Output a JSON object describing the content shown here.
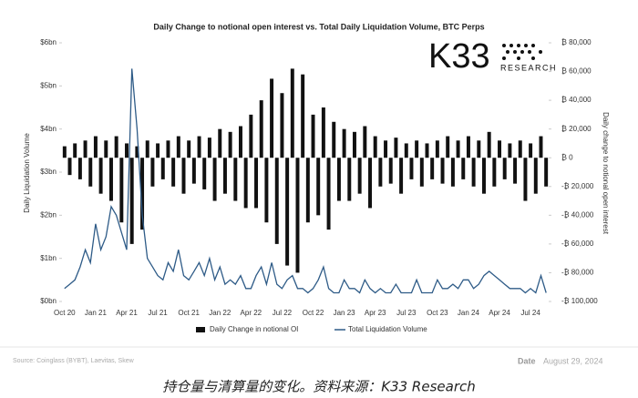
{
  "chart_data": {
    "type": "combo",
    "title": "Daily Change to notional open interest vs. Total Daily Liquidation Volume, BTC Perps",
    "y_label": "Daily Liquidation Volume",
    "y2_label": "Daily change to notional open interest",
    "categories": [
      "Oct 20",
      null,
      null,
      null,
      null,
      null,
      "Jan 21",
      null,
      null,
      null,
      null,
      null,
      "Apr 21",
      null,
      null,
      null,
      null,
      null,
      "Jul 21",
      null,
      null,
      null,
      null,
      null,
      "Oct 21",
      null,
      null,
      null,
      null,
      null,
      "Jan 22",
      null,
      null,
      null,
      null,
      null,
      "Apr 22",
      null,
      null,
      null,
      null,
      null,
      "Jul 22",
      null,
      null,
      null,
      null,
      null,
      "Oct 22",
      null,
      null,
      null,
      null,
      null,
      "Jan 23",
      null,
      null,
      null,
      null,
      null,
      "Apr 23",
      null,
      null,
      null,
      null,
      null,
      "Jul 23",
      null,
      null,
      null,
      null,
      null,
      "Oct 23",
      null,
      null,
      null,
      null,
      null,
      "Jan 24",
      null,
      null,
      null,
      null,
      null,
      "Apr 24",
      null,
      null,
      null,
      null,
      null,
      "Jul 24",
      null,
      null,
      null
    ],
    "ylim": [
      0,
      6
    ],
    "yticks": [
      {
        "value": 0,
        "label": "$0bn"
      },
      {
        "value": 1,
        "label": "$1bn"
      },
      {
        "value": 2,
        "label": "$2bn"
      },
      {
        "value": 3,
        "label": "$3bn"
      },
      {
        "value": 4,
        "label": "$4bn"
      },
      {
        "value": 5,
        "label": "$5bn"
      },
      {
        "value": 6,
        "label": "$6bn"
      }
    ],
    "y2lim": [
      -100000,
      80000
    ],
    "y2ticks": [
      {
        "value": 80000,
        "label": "₿ 80,000"
      },
      {
        "value": 60000,
        "label": "₿ 60,000"
      },
      {
        "value": 40000,
        "label": "₿ 40,000"
      },
      {
        "value": 20000,
        "label": "₿ 20,000"
      },
      {
        "value": 0,
        "label": "₿ 0"
      },
      {
        "value": -20000,
        "label": "-₿ 20,000"
      },
      {
        "value": -40000,
        "label": "-₿ 40,000"
      },
      {
        "value": -60000,
        "label": "-₿ 60,000"
      },
      {
        "value": -80000,
        "label": "-₿ 80,000"
      },
      {
        "value": -100000,
        "label": "-₿ 100,000"
      }
    ],
    "series": [
      {
        "name": "Daily Change in notional OI",
        "type": "bar",
        "axis": "y2",
        "color": "#111111",
        "values": [
          8000,
          -12000,
          10000,
          -15000,
          12000,
          -20000,
          15000,
          -25000,
          12000,
          -30000,
          15000,
          -45000,
          10000,
          -60000,
          8000,
          -50000,
          12000,
          -20000,
          10000,
          -15000,
          12000,
          -20000,
          15000,
          -25000,
          12000,
          -18000,
          15000,
          -22000,
          14000,
          -30000,
          20000,
          -25000,
          18000,
          -30000,
          22000,
          -35000,
          30000,
          -35000,
          40000,
          -45000,
          55000,
          -60000,
          45000,
          -75000,
          62000,
          -80000,
          58000,
          -45000,
          30000,
          -40000,
          35000,
          -50000,
          25000,
          -30000,
          20000,
          -30000,
          18000,
          -25000,
          22000,
          -35000,
          15000,
          -20000,
          12000,
          -18000,
          14000,
          -25000,
          10000,
          -15000,
          12000,
          -20000,
          10000,
          -15000,
          12000,
          -18000,
          15000,
          -20000,
          12000,
          -15000,
          15000,
          -20000,
          12000,
          -25000,
          18000,
          -20000,
          12000,
          -15000,
          10000,
          -18000,
          12000,
          -30000,
          10000,
          -25000,
          15000,
          -20000
        ]
      },
      {
        "name": "Total Liquidation Volume",
        "type": "line",
        "axis": "y",
        "color": "#2e5b87",
        "values": [
          0.3,
          0.4,
          0.5,
          0.8,
          1.2,
          0.9,
          1.8,
          1.2,
          1.5,
          2.2,
          2.0,
          1.6,
          1.2,
          5.4,
          4.0,
          2.0,
          1.0,
          0.8,
          0.6,
          0.5,
          0.9,
          0.7,
          1.2,
          0.6,
          0.5,
          0.7,
          0.9,
          0.6,
          1.0,
          0.5,
          0.8,
          0.4,
          0.5,
          0.4,
          0.6,
          0.3,
          0.3,
          0.6,
          0.8,
          0.4,
          0.9,
          0.4,
          0.3,
          0.5,
          0.6,
          0.3,
          0.3,
          0.2,
          0.3,
          0.5,
          0.8,
          0.3,
          0.2,
          0.2,
          0.5,
          0.3,
          0.3,
          0.2,
          0.5,
          0.3,
          0.2,
          0.3,
          0.2,
          0.2,
          0.4,
          0.2,
          0.2,
          0.2,
          0.5,
          0.2,
          0.2,
          0.2,
          0.5,
          0.3,
          0.3,
          0.4,
          0.3,
          0.5,
          0.5,
          0.3,
          0.4,
          0.6,
          0.7,
          0.6,
          0.5,
          0.4,
          0.3,
          0.3,
          0.3,
          0.2,
          0.3,
          0.2,
          0.6,
          0.2
        ]
      }
    ]
  },
  "logo": {
    "name": "K33",
    "sub": "RESEARCH"
  },
  "source": "Source: Coinglass (BYBT), Laevitas, Skew",
  "date_label": "Date",
  "date": "August 29, 2024",
  "caption": "持仓量与清算量的变化。资料来源：K33 Research"
}
